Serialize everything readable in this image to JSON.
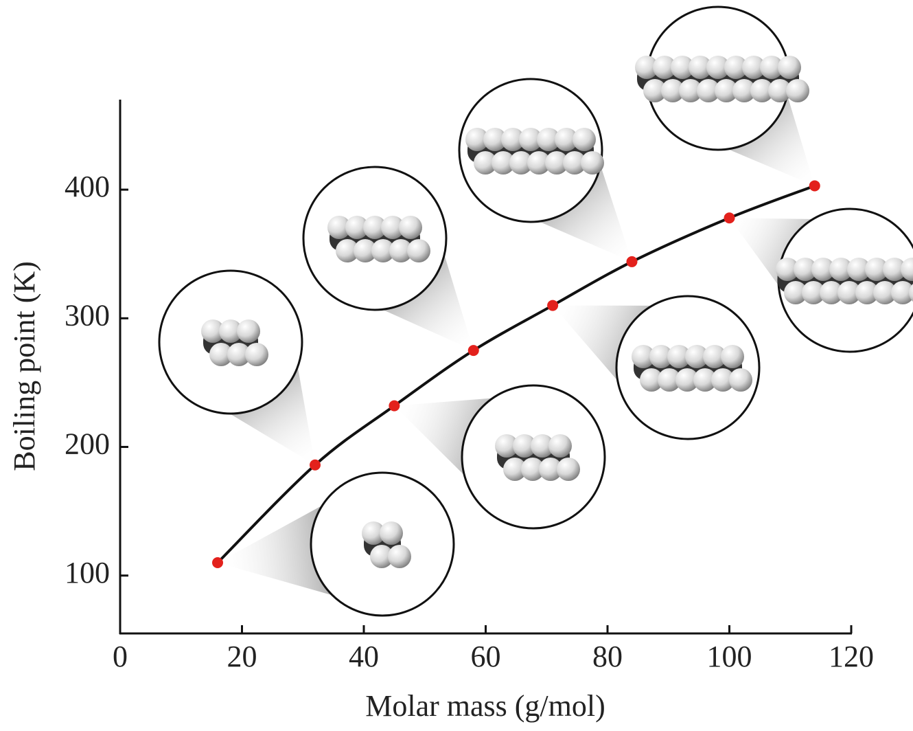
{
  "chart_data": {
    "type": "line",
    "x_label": "Molar mass (g/mol)",
    "y_label": "Boiling point (K)",
    "x": [
      16,
      32,
      45,
      58,
      71,
      84,
      100,
      114
    ],
    "series": [
      {
        "color": "#e3211c",
        "values": [
          110,
          186,
          232,
          275,
          310,
          344,
          378,
          403
        ]
      }
    ],
    "xlim": [
      0,
      120
    ],
    "xticks": [
      0,
      20,
      40,
      60,
      80,
      100,
      120
    ],
    "ylim": [
      55,
      470
    ],
    "yticks": [
      100,
      200,
      300,
      400
    ]
  }
}
